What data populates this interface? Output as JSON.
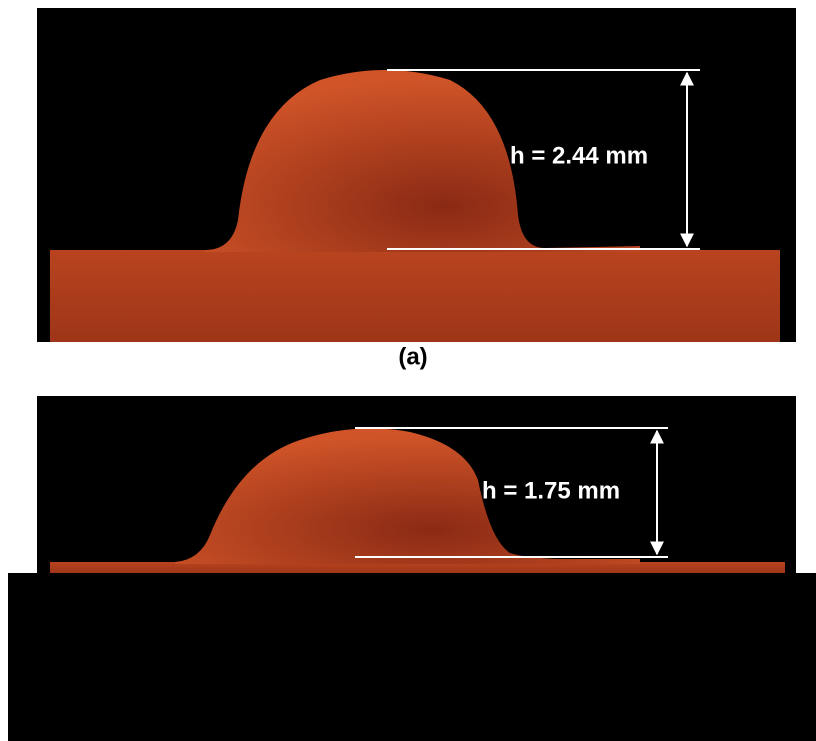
{
  "panels": [
    {
      "measurement": "h = 2.44 mm",
      "label": "(a)"
    },
    {
      "measurement": "h = 1.75 mm"
    }
  ]
}
